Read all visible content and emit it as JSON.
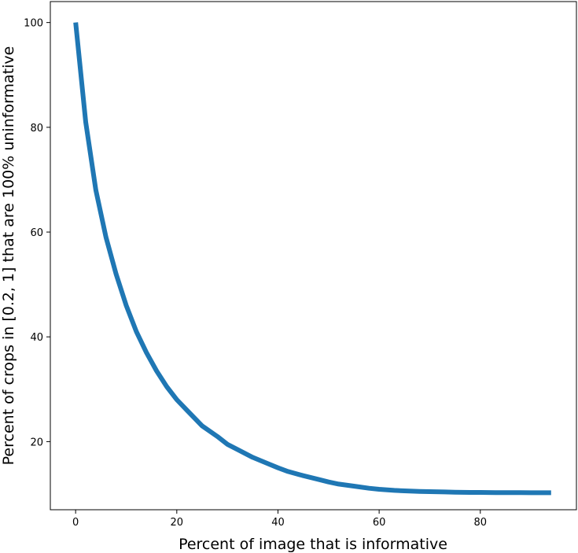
{
  "chart_data": {
    "type": "line",
    "title": "",
    "xlabel": "Percent of image that is informative",
    "ylabel": "Percent of crops in [0.2, 1] that are 100% uninformative",
    "xlim": [
      -5,
      99
    ],
    "ylim": [
      7,
      104
    ],
    "xticks": [
      0,
      20,
      40,
      60,
      80
    ],
    "yticks": [
      20,
      40,
      60,
      80,
      100
    ],
    "grid": false,
    "legend": "none",
    "series": [
      {
        "color": "#1f77b4",
        "x": [
          0,
          2,
          4,
          6,
          8,
          10,
          12,
          14,
          16,
          18,
          20,
          22,
          25,
          28,
          30,
          32,
          35,
          38,
          40,
          42,
          45,
          48,
          50,
          52,
          55,
          58,
          60,
          63,
          65,
          68,
          70,
          73,
          75,
          78,
          80,
          83,
          85,
          88,
          90,
          92,
          94
        ],
        "y": [
          100,
          81,
          68,
          59,
          52,
          46,
          41,
          37,
          33.5,
          30.5,
          28,
          26,
          23,
          21,
          19.5,
          18.5,
          17,
          15.8,
          15,
          14.3,
          13.5,
          12.8,
          12.3,
          11.9,
          11.5,
          11.1,
          10.9,
          10.7,
          10.6,
          10.5,
          10.45,
          10.4,
          10.35,
          10.3,
          10.3,
          10.28,
          10.27,
          10.26,
          10.25,
          10.25,
          10.25
        ]
      }
    ]
  }
}
